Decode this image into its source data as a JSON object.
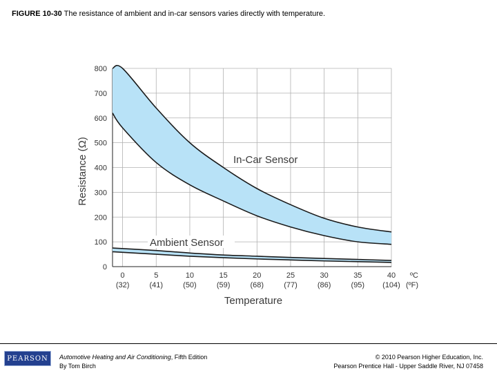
{
  "caption": {
    "figure_label": "FIGURE 10-30",
    "text": "The resistance of ambient and in-car sensors varies directly with temperature."
  },
  "chart_data": {
    "type": "area",
    "title": "",
    "xlabel": "Temperature",
    "ylabel": "Resistance (Ω)",
    "x_unit_label": "ºC",
    "x_alt_unit_label": "(ºF)",
    "xlim": [
      -1.5,
      40
    ],
    "ylim": [
      0,
      800
    ],
    "yticks": [
      0,
      100,
      200,
      300,
      400,
      500,
      600,
      700,
      800
    ],
    "xticks": [
      0,
      5,
      10,
      15,
      20,
      25,
      30,
      35,
      40
    ],
    "xticks_f": [
      "(32)",
      "(41)",
      "(50)",
      "(59)",
      "(68)",
      "(77)",
      "(86)",
      "(95)",
      "(104)"
    ],
    "grid": true,
    "colors": {
      "band": "#b8e2f7",
      "line": "#1a1a1a",
      "grid": "#b0b0b0"
    },
    "series": [
      {
        "name": "In-Car Sensor",
        "label": "In-Car Sensor",
        "x": [
          -1.5,
          0,
          5,
          10,
          15,
          20,
          25,
          30,
          35,
          40
        ],
        "upper": [
          800,
          800,
          640,
          500,
          400,
          315,
          250,
          195,
          160,
          140
        ],
        "lower": [
          620,
          560,
          420,
          330,
          265,
          205,
          160,
          125,
          100,
          90
        ]
      },
      {
        "name": "Ambient Sensor",
        "label": "Ambient Sensor",
        "x": [
          -1.5,
          5,
          10,
          15,
          20,
          25,
          30,
          35,
          40
        ],
        "upper": [
          75,
          65,
          55,
          47,
          42,
          37,
          33,
          29,
          25
        ],
        "lower": [
          60,
          50,
          42,
          36,
          31,
          27,
          23,
          20,
          17
        ]
      }
    ]
  },
  "footer": {
    "logo_text": "PEARSON",
    "book_title": "Automotive Heating and Air Conditioning",
    "book_edition": ", Fifth Edition",
    "author": "By Tom Birch",
    "copyright": "© 2010 Pearson Higher Education, Inc.",
    "publisher": "Pearson Prentice Hall - Upper Saddle River, NJ 07458"
  }
}
